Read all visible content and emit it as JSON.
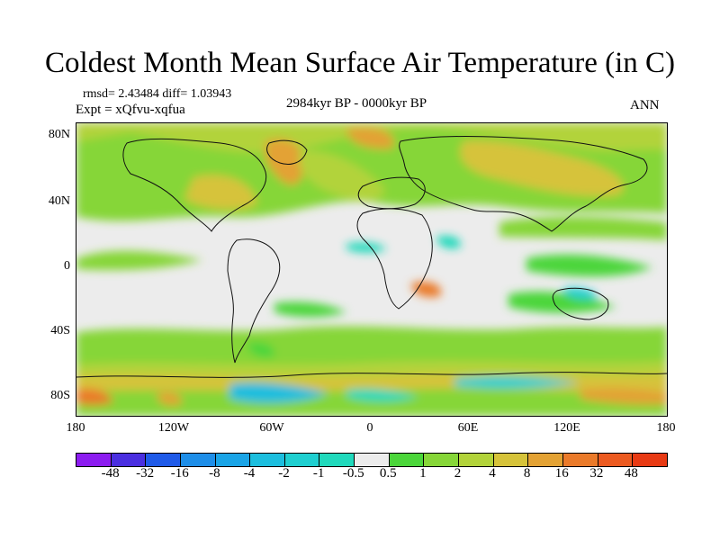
{
  "title": "Coldest Month Mean Surface Air Temperature (in C)",
  "stats": "rmsd= 2.43484 diff= 1.03943",
  "experiment": "Expt = xQfvu-xqfua",
  "period": "2984kyr BP - 0000kyr BP",
  "season": "ANN",
  "map": {
    "projection": "equirectangular",
    "lon_ticks": [
      "180",
      "120W",
      "60W",
      "0",
      "60E",
      "120E",
      "180"
    ],
    "lat_ticks": [
      "80N",
      "40N",
      "0",
      "40S",
      "80S"
    ]
  },
  "colorbar": {
    "levels": [
      "-48",
      "-32",
      "-16",
      "-8",
      "-4",
      "-2",
      "-1",
      "-0.5",
      "0.5",
      "1",
      "2",
      "4",
      "8",
      "16",
      "32",
      "48"
    ],
    "colors": [
      "#8c1cf0",
      "#4a2fe0",
      "#1f5ae8",
      "#1e8ee8",
      "#1aa4e6",
      "#1cbede",
      "#1fcfd0",
      "#20d9bc",
      "#ececec",
      "#4bd63a",
      "#86d638",
      "#b2d33a",
      "#d6c33a",
      "#e3a234",
      "#ea7a2a",
      "#ec5a20",
      "#e83a14"
    ]
  }
}
